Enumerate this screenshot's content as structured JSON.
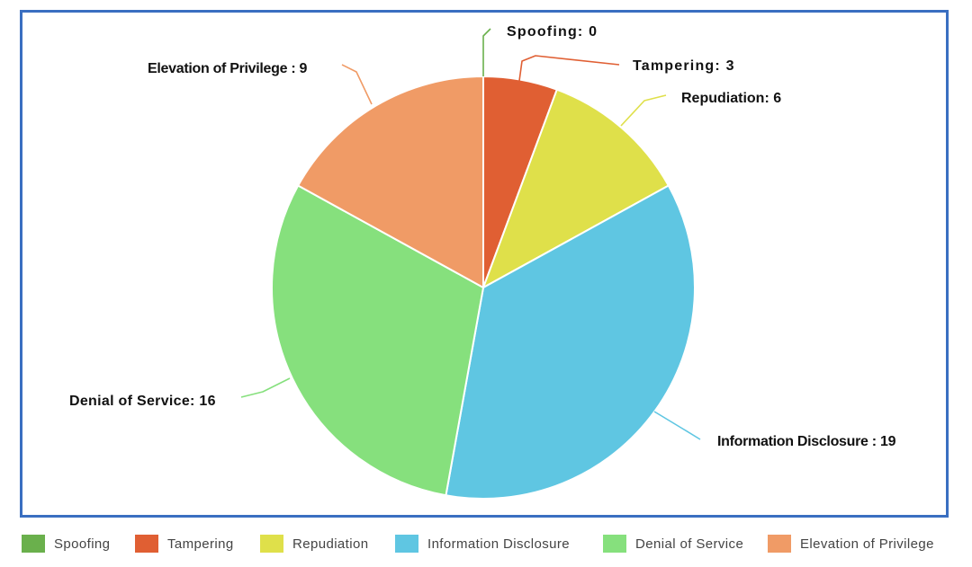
{
  "chart_data": {
    "type": "pie",
    "slices": [
      {
        "name": "Spoofing",
        "value": 0,
        "label": "Spoofing: 0",
        "color": "#6ab04c"
      },
      {
        "name": "Tampering",
        "value": 3,
        "label": "Tampering: 3",
        "color": "#e05f33"
      },
      {
        "name": "Repudiation",
        "value": 6,
        "label": "Repudiation: 6",
        "color": "#dfe04a"
      },
      {
        "name": "Information Disclosure",
        "value": 19,
        "label": "Information Disclosure : 19",
        "color": "#5fc6e2"
      },
      {
        "name": "Denial of Service",
        "value": 16,
        "label": "Denial of Service: 16",
        "color": "#86e07d"
      },
      {
        "name": "Elevation of Privilege",
        "value": 9,
        "label": "Elevation of Privilege : 9",
        "color": "#f09b66"
      }
    ],
    "legend_placement": "bottom",
    "border_color": "#3a6fc1"
  }
}
